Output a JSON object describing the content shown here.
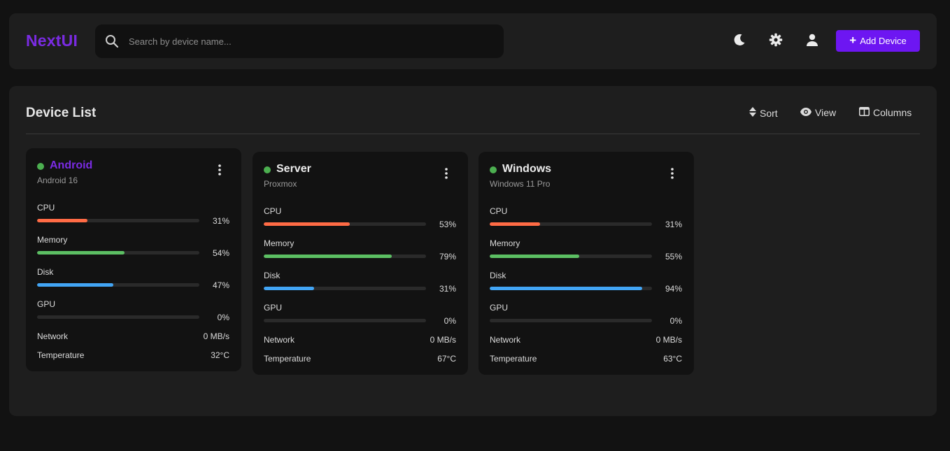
{
  "header": {
    "brand": "NextUI",
    "search_placeholder": "Search by device name...",
    "add_button_label": "Add Device",
    "icons": [
      "moon-icon",
      "gear-icon",
      "user-icon"
    ]
  },
  "main": {
    "title": "Device List",
    "actions": [
      {
        "label": "Sort",
        "icon": "sort-icon"
      },
      {
        "label": "View",
        "icon": "eye-icon"
      },
      {
        "label": "Columns",
        "icon": "columns-icon"
      }
    ]
  },
  "colors": {
    "accent": "#6d16f2",
    "brand": "#7a2be2",
    "status_online": "#4caf50",
    "cpu": "#ff6b45",
    "memory": "#5cbf63",
    "disk": "#42a5f5"
  },
  "devices": [
    {
      "name": "Android",
      "subtitle": "Android 16",
      "metrics": [
        {
          "label": "CPU",
          "percent": 31,
          "text": "31%"
        },
        {
          "label": "Memory",
          "percent": 54,
          "text": "54%"
        },
        {
          "label": "Disk",
          "percent": 47,
          "text": "47%"
        },
        {
          "label": "GPU",
          "percent": 0,
          "text": "0%"
        }
      ],
      "network_label": "Network",
      "network": "0 MB/s",
      "temperature_label": "Temperature",
      "temperature": "32°C"
    },
    {
      "name": "Server",
      "subtitle": "Proxmox",
      "metrics": [
        {
          "label": "CPU",
          "percent": 53,
          "text": "53%"
        },
        {
          "label": "Memory",
          "percent": 79,
          "text": "79%"
        },
        {
          "label": "Disk",
          "percent": 31,
          "text": "31%"
        },
        {
          "label": "GPU",
          "percent": 0,
          "text": "0%"
        }
      ],
      "network_label": "Network",
      "network": "0 MB/s",
      "temperature_label": "Temperature",
      "temperature": "67°C"
    },
    {
      "name": "Windows",
      "subtitle": "Windows 11 Pro",
      "metrics": [
        {
          "label": "CPU",
          "percent": 31,
          "text": "31%"
        },
        {
          "label": "Memory",
          "percent": 55,
          "text": "55%"
        },
        {
          "label": "Disk",
          "percent": 94,
          "text": "94%"
        },
        {
          "label": "GPU",
          "percent": 0,
          "text": "0%"
        }
      ],
      "network_label": "Network",
      "network": "0 MB/s",
      "temperature_label": "Temperature",
      "temperature": "63°C"
    }
  ]
}
